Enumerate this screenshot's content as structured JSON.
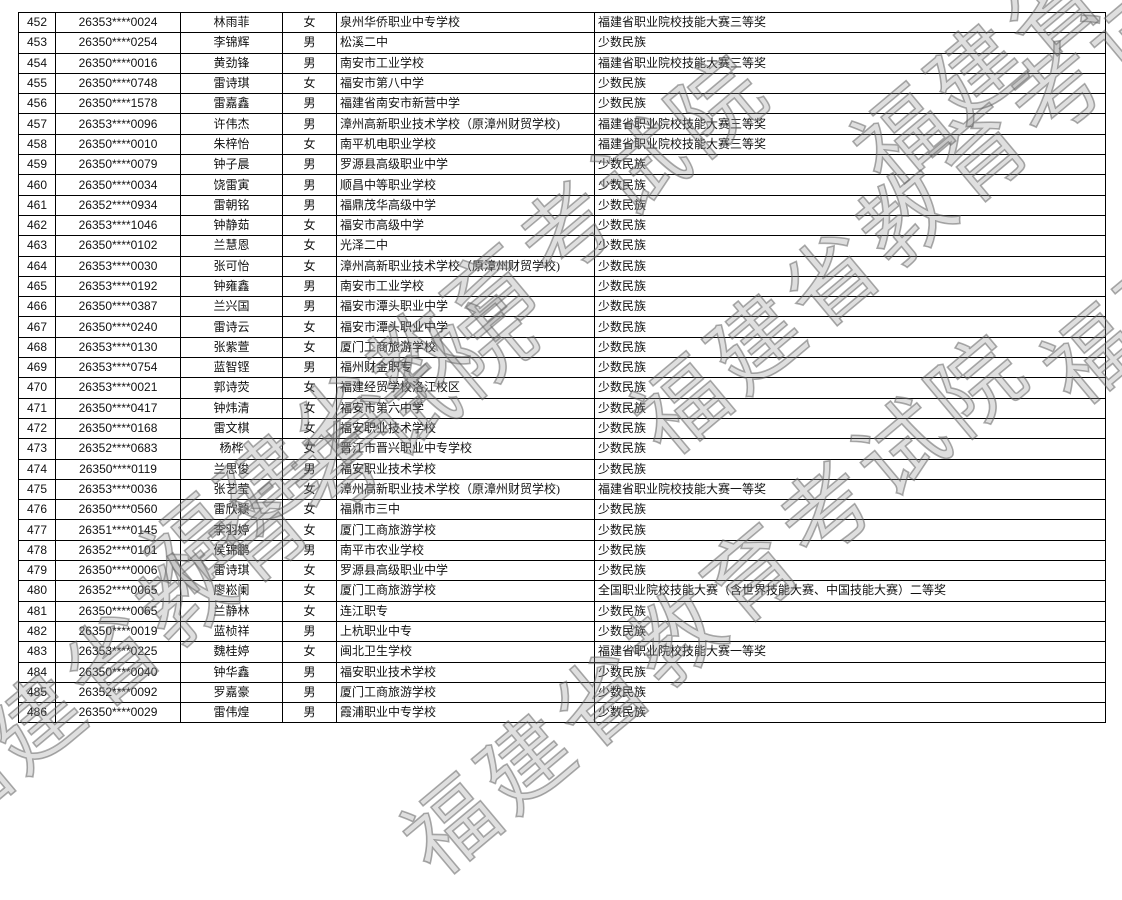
{
  "watermark": "福建省教育考试院",
  "rows": [
    {
      "no": "452",
      "id": "26353****0024",
      "name": "林雨菲",
      "gender": "女",
      "school": "泉州华侨职业中专学校",
      "award": "福建省职业院校技能大赛三等奖"
    },
    {
      "no": "453",
      "id": "26350****0254",
      "name": "李锦辉",
      "gender": "男",
      "school": "松溪二中",
      "award": "少数民族"
    },
    {
      "no": "454",
      "id": "26350****0016",
      "name": "黄劲锋",
      "gender": "男",
      "school": "南安市工业学校",
      "award": "福建省职业院校技能大赛三等奖"
    },
    {
      "no": "455",
      "id": "26350****0748",
      "name": "雷诗琪",
      "gender": "女",
      "school": "福安市第八中学",
      "award": "少数民族"
    },
    {
      "no": "456",
      "id": "26350****1578",
      "name": "雷嘉鑫",
      "gender": "男",
      "school": "福建省南安市新营中学",
      "award": "少数民族"
    },
    {
      "no": "457",
      "id": "26353****0096",
      "name": "许伟杰",
      "gender": "男",
      "school": "漳州高新职业技术学校（原漳州财贸学校)",
      "award": "福建省职业院校技能大赛三等奖"
    },
    {
      "no": "458",
      "id": "26350****0010",
      "name": "朱梓怡",
      "gender": "女",
      "school": "南平机电职业学校",
      "award": "福建省职业院校技能大赛三等奖"
    },
    {
      "no": "459",
      "id": "26350****0079",
      "name": "钟子晨",
      "gender": "男",
      "school": "罗源县高级职业中学",
      "award": "少数民族"
    },
    {
      "no": "460",
      "id": "26350****0034",
      "name": "饶雷寅",
      "gender": "男",
      "school": "顺昌中等职业学校",
      "award": "少数民族"
    },
    {
      "no": "461",
      "id": "26352****0934",
      "name": "雷朝铭",
      "gender": "男",
      "school": "福鼎茂华高级中学",
      "award": "少数民族"
    },
    {
      "no": "462",
      "id": "26353****1046",
      "name": "钟静茹",
      "gender": "女",
      "school": "福安市高级中学",
      "award": "少数民族"
    },
    {
      "no": "463",
      "id": "26350****0102",
      "name": "兰慧恩",
      "gender": "女",
      "school": "光泽二中",
      "award": "少数民族"
    },
    {
      "no": "464",
      "id": "26353****0030",
      "name": "张可怡",
      "gender": "女",
      "school": "漳州高新职业技术学校（原漳州财贸学校)",
      "award": "少数民族"
    },
    {
      "no": "465",
      "id": "26353****0192",
      "name": "钟雍鑫",
      "gender": "男",
      "school": "南安市工业学校",
      "award": "少数民族"
    },
    {
      "no": "466",
      "id": "26350****0387",
      "name": "兰兴国",
      "gender": "男",
      "school": "福安市潭头职业中学",
      "award": "少数民族"
    },
    {
      "no": "467",
      "id": "26350****0240",
      "name": "雷诗云",
      "gender": "女",
      "school": "福安市潭头职业中学",
      "award": "少数民族"
    },
    {
      "no": "468",
      "id": "26353****0130",
      "name": "张紫萱",
      "gender": "女",
      "school": "厦门工商旅游学校",
      "award": "少数民族"
    },
    {
      "no": "469",
      "id": "26353****0754",
      "name": "蓝智铿",
      "gender": "男",
      "school": "福州财金职专",
      "award": "少数民族"
    },
    {
      "no": "470",
      "id": "26353****0021",
      "name": "郭诗荧",
      "gender": "女",
      "school": "福建经贸学校洛江校区",
      "award": "少数民族"
    },
    {
      "no": "471",
      "id": "26350****0417",
      "name": "钟炜清",
      "gender": "女",
      "school": "福安市第六中学",
      "award": "少数民族"
    },
    {
      "no": "472",
      "id": "26350****0168",
      "name": "雷文棋",
      "gender": "女",
      "school": "福安职业技术学校",
      "award": "少数民族"
    },
    {
      "no": "473",
      "id": "26352****0683",
      "name": "杨桦",
      "gender": "女",
      "school": "晋江市晋兴职业中专学校",
      "award": "少数民族"
    },
    {
      "no": "474",
      "id": "26350****0119",
      "name": "兰思俊",
      "gender": "男",
      "school": "福安职业技术学校",
      "award": "少数民族"
    },
    {
      "no": "475",
      "id": "26353****0036",
      "name": "张艺莹",
      "gender": "女",
      "school": "漳州高新职业技术学校（原漳州财贸学校)",
      "award": "福建省职业院校技能大赛一等奖"
    },
    {
      "no": "476",
      "id": "26350****0560",
      "name": "雷欣颖",
      "gender": "女",
      "school": "福鼎市三中",
      "award": "少数民族"
    },
    {
      "no": "477",
      "id": "26351****0145",
      "name": "李羽婷",
      "gender": "女",
      "school": "厦门工商旅游学校",
      "award": "少数民族"
    },
    {
      "no": "478",
      "id": "26352****0101",
      "name": "侯锦鹏",
      "gender": "男",
      "school": "南平市农业学校",
      "award": "少数民族"
    },
    {
      "no": "479",
      "id": "26350****0006",
      "name": "雷诗琪",
      "gender": "女",
      "school": "罗源县高级职业中学",
      "award": "少数民族"
    },
    {
      "no": "480",
      "id": "26352****0065",
      "name": "廖崧阑",
      "gender": "女",
      "school": "厦门工商旅游学校",
      "award": "全国职业院校技能大赛（含世界技能大赛、中国技能大赛）二等奖"
    },
    {
      "no": "481",
      "id": "26350****0065",
      "name": "兰静林",
      "gender": "女",
      "school": "连江职专",
      "award": "少数民族"
    },
    {
      "no": "482",
      "id": "26350****0019",
      "name": "蓝桢祥",
      "gender": "男",
      "school": "上杭职业中专",
      "award": "少数民族"
    },
    {
      "no": "483",
      "id": "26353****0225",
      "name": "魏桂婷",
      "gender": "女",
      "school": "闽北卫生学校",
      "award": "福建省职业院校技能大赛一等奖"
    },
    {
      "no": "484",
      "id": "26350****0040",
      "name": "钟华鑫",
      "gender": "男",
      "school": "福安职业技术学校",
      "award": "少数民族"
    },
    {
      "no": "485",
      "id": "26352****0092",
      "name": "罗嘉豪",
      "gender": "男",
      "school": "厦门工商旅游学校",
      "award": "少数民族"
    },
    {
      "no": "486",
      "id": "26350****0029",
      "name": "雷伟煌",
      "gender": "男",
      "school": "霞浦职业中专学校",
      "award": "少数民族"
    }
  ]
}
